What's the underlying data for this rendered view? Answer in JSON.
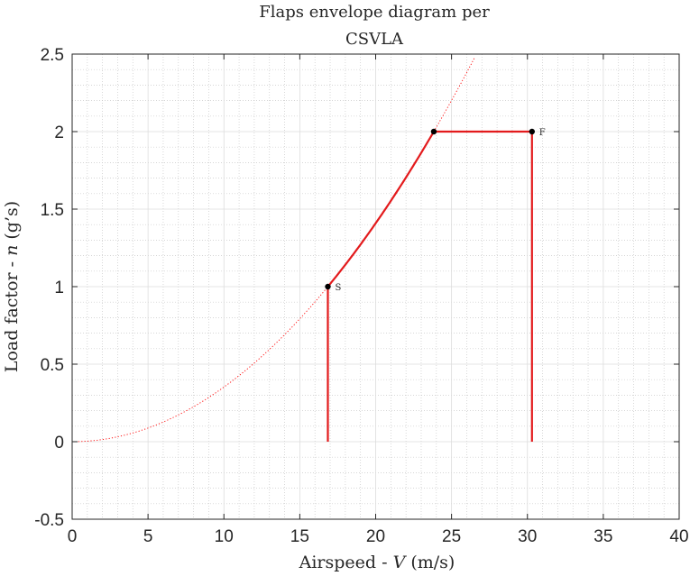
{
  "chart_data": {
    "type": "line",
    "title": [
      "Flaps envelope diagram per",
      "CSVLA"
    ],
    "xlabel": {
      "text": "Airspeed - ",
      "symbol": "V",
      "unit": " (m/s)"
    },
    "ylabel": {
      "text": "Load factor - ",
      "symbol": "n",
      "unit": " (g’s)"
    },
    "xlim": [
      0,
      40
    ],
    "ylim": [
      -0.5,
      2.5
    ],
    "xticks": [
      0,
      5,
      10,
      15,
      20,
      25,
      30,
      35,
      40
    ],
    "yticks": [
      -0.5,
      0,
      0.5,
      1,
      1.5,
      2,
      2.5
    ],
    "xtick_labels": [
      "0",
      "5",
      "10",
      "15",
      "20",
      "25",
      "30",
      "35",
      "40"
    ],
    "ytick_labels": [
      "-0.5",
      "0",
      "0.5",
      "1",
      "1.5",
      "2",
      "2.5"
    ],
    "grid": true,
    "minor_grid": true,
    "stall_curve": {
      "style": "dotted",
      "color": "#ff0000",
      "formula": "n = (V / 16.85)^2",
      "vs": 16.85,
      "x_range": [
        0,
        26.5
      ]
    },
    "envelope": {
      "color": "#e31a1c",
      "segments": [
        {
          "kind": "line",
          "points": [
            [
              16.85,
              0
            ],
            [
              16.85,
              1.0
            ]
          ]
        },
        {
          "kind": "curve",
          "formula": "n = (V / 16.85)^2",
          "x_range": [
            16.85,
            23.83
          ]
        },
        {
          "kind": "line",
          "points": [
            [
              23.83,
              2.0
            ],
            [
              30.3,
              2.0
            ]
          ]
        },
        {
          "kind": "line",
          "points": [
            [
              30.3,
              2.0
            ],
            [
              30.3,
              0
            ]
          ]
        }
      ]
    },
    "points": [
      {
        "label": "S",
        "x": 16.85,
        "y": 1.0
      },
      {
        "label": "",
        "x": 23.83,
        "y": 2.0
      },
      {
        "label": "F",
        "x": 30.3,
        "y": 2.0
      }
    ]
  }
}
